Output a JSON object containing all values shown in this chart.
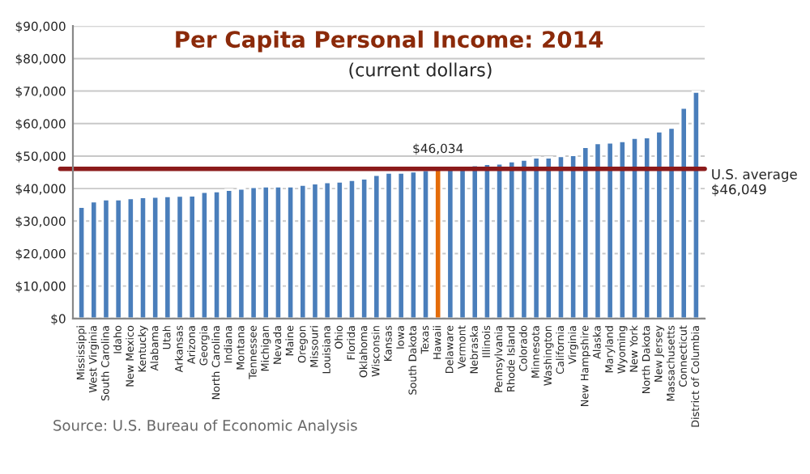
{
  "chart_data": {
    "type": "bar",
    "title": "Per Capita Personal Income: 2014",
    "subtitle": "(current dollars)",
    "categories": [
      "Mississippi",
      "West Virginia",
      "South Carolina",
      "Idaho",
      "New Mexico",
      "Kentucky",
      "Alabama",
      "Utah",
      "Arkansas",
      "Arizona",
      "Georgia",
      "North Carolina",
      "Indiana",
      "Montana",
      "Tennessee",
      "Michigan",
      "Nevada",
      "Maine",
      "Oregon",
      "Missouri",
      "Louisiana",
      "Ohio",
      "Florida",
      "Oklahoma",
      "Wisconsin",
      "Kansas",
      "Iowa",
      "South Dakota",
      "Texas",
      "Hawaii",
      "Delaware",
      "Vermont",
      "Nebraska",
      "Illinois",
      "Pennsylvania",
      "Rhode Island",
      "Colorado",
      "Minnesota",
      "Washington",
      "California",
      "Virginia",
      "New Hampshire",
      "Alaska",
      "Maryland",
      "Wyoming",
      "New York",
      "North Dakota",
      "New Jersey",
      "Massachusetts",
      "Connecticut",
      "District of Columbia"
    ],
    "values": [
      34400,
      36100,
      36700,
      36700,
      37100,
      37400,
      37500,
      37700,
      37800,
      37900,
      39000,
      39200,
      39600,
      40000,
      40500,
      40700,
      40700,
      40700,
      41200,
      41600,
      42000,
      42200,
      42700,
      43100,
      44200,
      44900,
      44900,
      45300,
      45700,
      46034,
      46400,
      46400,
      47200,
      47600,
      47700,
      48400,
      48900,
      49600,
      49600,
      50000,
      50300,
      52800,
      54000,
      54200,
      54600,
      55600,
      55800,
      57600,
      58700,
      64900,
      69800
    ],
    "colors": [
      "#4a7ebb",
      "#4a7ebb",
      "#4a7ebb",
      "#4a7ebb",
      "#4a7ebb",
      "#4a7ebb",
      "#4a7ebb",
      "#4a7ebb",
      "#4a7ebb",
      "#4a7ebb",
      "#4a7ebb",
      "#4a7ebb",
      "#4a7ebb",
      "#4a7ebb",
      "#4a7ebb",
      "#4a7ebb",
      "#4a7ebb",
      "#4a7ebb",
      "#4a7ebb",
      "#4a7ebb",
      "#4a7ebb",
      "#4a7ebb",
      "#4a7ebb",
      "#4a7ebb",
      "#4a7ebb",
      "#4a7ebb",
      "#4a7ebb",
      "#4a7ebb",
      "#4a7ebb",
      "#e46c0a",
      "#4a7ebb",
      "#4a7ebb",
      "#4a7ebb",
      "#4a7ebb",
      "#4a7ebb",
      "#4a7ebb",
      "#4a7ebb",
      "#4a7ebb",
      "#4a7ebb",
      "#4a7ebb",
      "#4a7ebb",
      "#4a7ebb",
      "#4a7ebb",
      "#4a7ebb",
      "#4a7ebb",
      "#4a7ebb",
      "#4a7ebb",
      "#4a7ebb",
      "#4a7ebb",
      "#4a7ebb",
      "#4a7ebb"
    ],
    "ylim": [
      0,
      90000
    ],
    "yticks": [
      {
        "value": 0,
        "label": "$0"
      },
      {
        "value": 10000,
        "label": "$10,000"
      },
      {
        "value": 20000,
        "label": "$20,000"
      },
      {
        "value": 30000,
        "label": "$30,000"
      },
      {
        "value": 40000,
        "label": "$40,000"
      },
      {
        "value": 50000,
        "label": "$50,000"
      },
      {
        "value": 60000,
        "label": "$60,000"
      },
      {
        "value": 70000,
        "label": "$70,000"
      },
      {
        "value": 80000,
        "label": "$80,000"
      },
      {
        "value": 90000,
        "label": "$90,000"
      }
    ],
    "grid": "y",
    "ref_lines": [
      {
        "axis": "y",
        "value": 46049,
        "label": "U.S. average\n$46,049",
        "color": "#8b1a1a"
      }
    ],
    "annotations": [
      {
        "text": "$46,034",
        "x": "Hawaii",
        "y": 46034
      },
      "Source: U.S. Bureau of Economic Analysis"
    ]
  }
}
